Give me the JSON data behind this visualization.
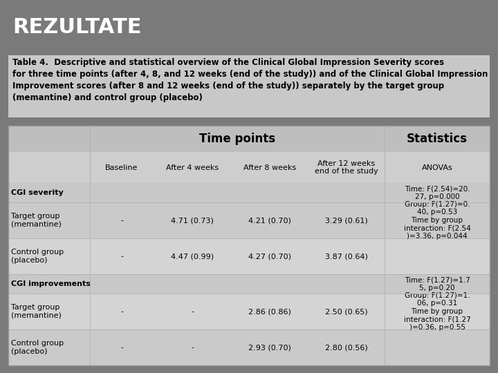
{
  "title": "REZULTATE",
  "title_color": "#FFFFFF",
  "title_fontsize": 22,
  "title_bold": true,
  "bg_color": "#7A7A7A",
  "table_bg": "#D3D3D3",
  "caption": "Table 4.  Descriptive and statistical overview of the Clinical Global Impression Severity scores\nfor three time points (after 4, 8, and 12 weeks (end of the study)) and of the Clinical Global Impression\nImprovement scores (after 8 and 12 weeks (end of the study)) separately by the target group\n(memantine) and control group (placebo)",
  "caption_fontsize": 8.5,
  "caption_color": "#000000",
  "caption_bg": "#C8C8C8",
  "header1_label": "Time points",
  "header2_label": "Statistics",
  "col_headers": [
    "Baseline",
    "After 4 weeks",
    "After 8 weeks",
    "After 12 weeks\nend of the study",
    "ANOVAs"
  ],
  "row_labels": [
    "CGI severity",
    "Target group\n(memantine)",
    "Control group\n(placebo)",
    "CGI improvements",
    "Target group\n(memantine)",
    "Control group\n(placebo)"
  ],
  "data": [
    [
      "",
      "",
      "",
      "",
      "Time: F(2.54)=20.\n27, p=0.000"
    ],
    [
      "-",
      "4.71 (0.73)",
      "4.21 (0.70)",
      "3.29 (0.61)",
      "Group: F(1.27)=0.\n40, p=0.53\nTime by group\ninteraction: F(2.54\n)=3.36, p=0.044"
    ],
    [
      "-",
      "4.47 (0.99)",
      "4.27 (0.70)",
      "3.87 (0.64)",
      ""
    ],
    [
      "",
      "",
      "",
      "",
      "Time: F(1.27)=1.7\n5, p=0.20"
    ],
    [
      "-",
      "-",
      "2.86 (0.86)",
      "2.50 (0.65)",
      "Group: F(1.27)=1.\n06, p=0.31\nTime by group\ninteraction: F(1.27\n)=0.36, p=0.55"
    ],
    [
      "-",
      "-",
      "2.93 (0.70)",
      "2.80 (0.56)",
      ""
    ]
  ],
  "row_label_is_header": [
    true,
    false,
    false,
    true,
    false,
    false
  ],
  "header_row_bg": "#BEBEBE",
  "data_row_bg_even": "#D0D0D0",
  "data_row_bg_odd": "#C4C4C4",
  "header_section_bg": "#BEBEBE"
}
